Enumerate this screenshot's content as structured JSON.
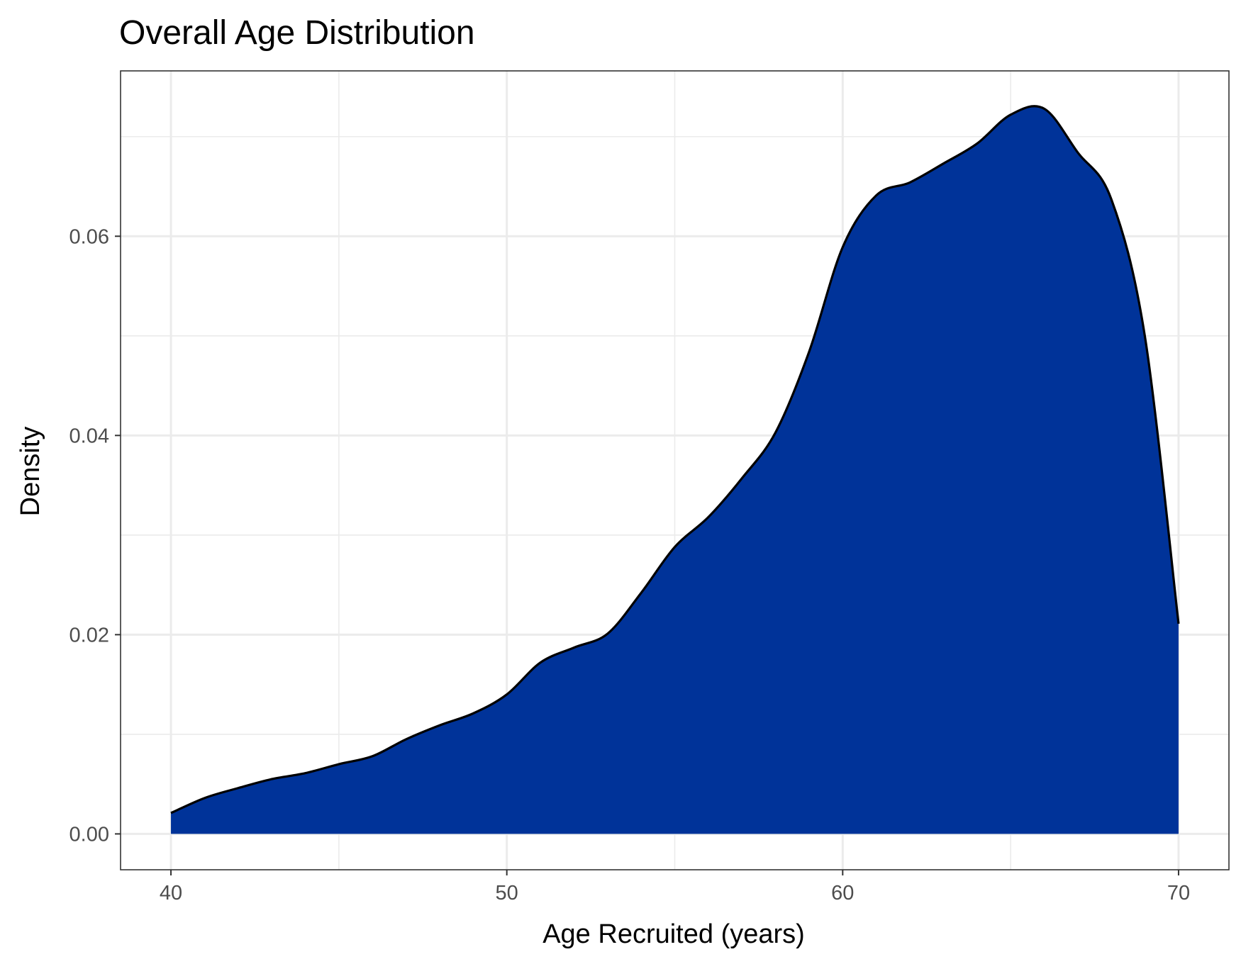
{
  "chart_data": {
    "type": "area",
    "title": "Overall Age Distribution",
    "xlabel": "Age Recruited (years)",
    "ylabel": "Density",
    "xlim": [
      38.5,
      71.5
    ],
    "ylim": [
      -0.0036,
      0.0766
    ],
    "x_ticks": [
      40,
      50,
      60,
      70
    ],
    "x_tick_labels": [
      "40",
      "50",
      "60",
      "70"
    ],
    "y_ticks": [
      0.0,
      0.02,
      0.04,
      0.06
    ],
    "y_tick_labels": [
      "0.00",
      "0.02",
      "0.04",
      "0.06"
    ],
    "x_minor_ticks": [
      45,
      55,
      65
    ],
    "y_minor_ticks": [
      0.01,
      0.03,
      0.05,
      0.07
    ],
    "grid": true,
    "legend": "none",
    "fill_color": "#003399",
    "line_color": "#000000",
    "series": [
      {
        "x": [
          40,
          41,
          42,
          43,
          44,
          45,
          46,
          47,
          48,
          49,
          50,
          51,
          52,
          53,
          54,
          55,
          56,
          57,
          58,
          59,
          60,
          61,
          62,
          63,
          64,
          65,
          66,
          67,
          68,
          69,
          70
        ],
        "y": [
          0.0021,
          0.0036,
          0.0046,
          0.0055,
          0.0061,
          0.007,
          0.0078,
          0.0095,
          0.0109,
          0.0121,
          0.014,
          0.0172,
          0.0187,
          0.0201,
          0.0242,
          0.0288,
          0.0318,
          0.0357,
          0.0403,
          0.0484,
          0.0589,
          0.0641,
          0.0654,
          0.0673,
          0.0693,
          0.0722,
          0.0728,
          0.0684,
          0.0637,
          0.0499,
          0.0211
        ]
      }
    ]
  }
}
